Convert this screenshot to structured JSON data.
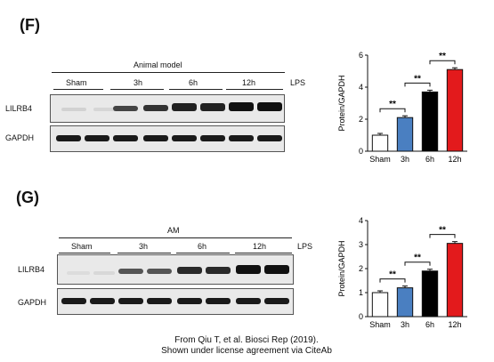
{
  "panels": [
    {
      "label": "(F)",
      "group_header": "Animal model",
      "groups": [
        "Sham",
        "3h",
        "6h",
        "12h"
      ],
      "treatment": "LPS",
      "rows": [
        "LILRB4",
        "GAPDH"
      ],
      "chart_data": {
        "type": "bar",
        "categories": [
          "Sham",
          "3h",
          "6h",
          "12h"
        ],
        "values": [
          1.0,
          2.1,
          3.7,
          5.1
        ],
        "ylabel": "Protein/GAPDH",
        "ylim": [
          0,
          6
        ],
        "yticks": [
          0,
          2,
          4,
          6
        ],
        "colors": [
          "#ffffff",
          "#4a7fc1",
          "#000000",
          "#e31a1c"
        ],
        "significance": [
          {
            "pair": [
              "Sham",
              "3h"
            ],
            "label": "**"
          },
          {
            "pair": [
              "3h",
              "6h"
            ],
            "label": "**"
          },
          {
            "pair": [
              "6h",
              "12h"
            ],
            "label": "**"
          }
        ]
      }
    },
    {
      "label": "(G)",
      "group_header": "AM",
      "groups": [
        "Sham",
        "3h",
        "6h",
        "12h"
      ],
      "treatment": "LPS",
      "rows": [
        "LILRB4",
        "GAPDH"
      ],
      "chart_data": {
        "type": "bar",
        "categories": [
          "Sham",
          "3h",
          "6h",
          "12h"
        ],
        "values": [
          1.0,
          1.2,
          1.9,
          3.05
        ],
        "ylabel": "Protein/GAPDH",
        "ylim": [
          0,
          4
        ],
        "yticks": [
          0,
          1,
          2,
          3,
          4
        ],
        "colors": [
          "#ffffff",
          "#4a7fc1",
          "#000000",
          "#e31a1c"
        ],
        "significance": [
          {
            "pair": [
              "Sham",
              "3h"
            ],
            "label": "**"
          },
          {
            "pair": [
              "3h",
              "6h"
            ],
            "label": "**"
          },
          {
            "pair": [
              "6h",
              "12h"
            ],
            "label": "**"
          }
        ]
      }
    }
  ],
  "credit": {
    "line1": "From Qiu T, et al. Biosci Rep (2019).",
    "line2": "Shown under license agreement via CiteAb"
  }
}
